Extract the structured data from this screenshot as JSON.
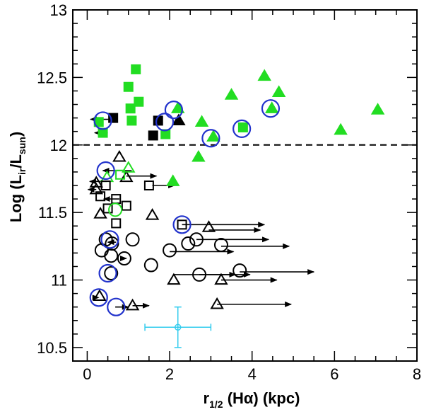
{
  "chart_data": {
    "type": "scatter",
    "title": "",
    "xlabel": {
      "main": "r",
      "sub": "1/2",
      "rest": " (Hα)  (kpc)"
    },
    "ylabel": {
      "pre": "Log (L",
      "sub1": "ir",
      "mid": "/L",
      "sub2": "sun",
      "post": ")"
    },
    "xlim": [
      -0.35,
      8.0
    ],
    "ylim": [
      10.4,
      13.0
    ],
    "x_ticks": [
      0,
      2,
      4,
      6,
      8
    ],
    "x_tick_labels": [
      "0",
      "2",
      "4",
      "6",
      "8"
    ],
    "y_ticks": [
      10.5,
      11,
      11.5,
      12,
      12.5,
      13
    ],
    "y_tick_labels": [
      "10.5",
      "11",
      "11.5",
      "12",
      "12.5",
      "13"
    ],
    "threshold_line": {
      "y": 12.0,
      "style": "dashed"
    },
    "colors": {
      "green": "#22dd22",
      "black": "#000000",
      "blue": "#2233cc",
      "cyan": "#33ccee"
    },
    "series": [
      {
        "name": "green-filled-squares",
        "marker": "square",
        "fill": "green",
        "points": [
          [
            1.18,
            12.56
          ],
          [
            1.0,
            12.43
          ],
          [
            1.25,
            12.32
          ],
          [
            1.05,
            12.27
          ],
          [
            1.08,
            12.18
          ],
          [
            0.28,
            12.17
          ],
          [
            0.38,
            12.09
          ],
          [
            1.9,
            12.08
          ],
          [
            3.78,
            12.13
          ]
        ]
      },
      {
        "name": "black-filled-squares",
        "marker": "square",
        "fill": "black",
        "points": [
          [
            0.63,
            12.2
          ],
          [
            1.72,
            12.18
          ],
          [
            1.6,
            12.07
          ]
        ]
      },
      {
        "name": "green-filled-triangles",
        "marker": "triangle",
        "fill": "green",
        "points": [
          [
            4.3,
            12.51
          ],
          [
            4.65,
            12.39
          ],
          [
            3.5,
            12.37
          ],
          [
            2.2,
            12.27
          ],
          [
            4.48,
            12.27
          ],
          [
            2.78,
            12.17
          ],
          [
            7.05,
            12.26
          ],
          [
            3.06,
            12.06
          ],
          [
            6.15,
            12.11
          ],
          [
            2.7,
            11.91
          ],
          [
            2.08,
            11.73
          ]
        ]
      },
      {
        "name": "black-filled-triangles",
        "marker": "triangle",
        "fill": "black",
        "points": [
          [
            2.22,
            12.18
          ]
        ]
      },
      {
        "name": "open-triangles",
        "marker": "triangle",
        "fill": "none",
        "points": [
          [
            0.78,
            11.91
          ],
          [
            0.95,
            11.76
          ],
          [
            0.22,
            11.72
          ],
          [
            0.22,
            11.67
          ],
          [
            0.32,
            11.49
          ],
          [
            1.58,
            11.48
          ],
          [
            2.95,
            11.39
          ],
          [
            2.1,
            11.0
          ],
          [
            3.25,
            11.0
          ],
          [
            0.3,
            10.88
          ],
          [
            1.1,
            10.81
          ],
          [
            3.15,
            10.82
          ]
        ]
      },
      {
        "name": "open-green-triangles",
        "marker": "triangle",
        "fill": "none-green",
        "points": [
          [
            1.0,
            11.83
          ],
          [
            0.48,
            11.76
          ]
        ]
      },
      {
        "name": "open-squares",
        "marker": "square",
        "fill": "none",
        "points": [
          [
            0.32,
            11.62
          ],
          [
            0.45,
            11.7
          ],
          [
            0.7,
            11.6
          ],
          [
            0.5,
            11.53
          ],
          [
            0.95,
            11.55
          ],
          [
            0.7,
            11.42
          ],
          [
            1.5,
            11.7
          ],
          [
            2.3,
            11.41
          ]
        ]
      },
      {
        "name": "open-green-squares",
        "marker": "square",
        "fill": "none-green",
        "points": [
          [
            0.8,
            11.78
          ]
        ]
      },
      {
        "name": "open-circles",
        "marker": "circle",
        "fill": "none",
        "points": [
          [
            0.45,
            11.3
          ],
          [
            0.6,
            11.27
          ],
          [
            1.1,
            11.3
          ],
          [
            0.35,
            11.22
          ],
          [
            0.58,
            11.18
          ],
          [
            0.9,
            11.16
          ],
          [
            1.55,
            11.11
          ],
          [
            2.0,
            11.22
          ],
          [
            2.45,
            11.27
          ],
          [
            2.65,
            11.3
          ],
          [
            3.25,
            11.26
          ],
          [
            0.58,
            11.05
          ],
          [
            2.72,
            11.04
          ],
          [
            3.7,
            11.07
          ]
        ]
      },
      {
        "name": "open-green-circles",
        "marker": "circle",
        "fill": "none-green",
        "points": [
          [
            0.68,
            11.52
          ]
        ]
      }
    ],
    "blue_rings": [
      [
        0.38,
        12.18
      ],
      [
        1.88,
        12.17
      ],
      [
        2.1,
        12.26
      ],
      [
        3.0,
        12.05
      ],
      [
        3.75,
        12.12
      ],
      [
        4.45,
        12.27
      ],
      [
        0.45,
        11.81
      ],
      [
        2.3,
        11.41
      ],
      [
        0.55,
        11.3
      ],
      [
        0.5,
        11.05
      ],
      [
        0.28,
        10.87
      ],
      [
        0.7,
        10.8
      ]
    ],
    "arrows": [
      {
        "from": 0.68,
        "to": 0.08,
        "y": 12.19
      },
      {
        "from": 0.5,
        "to": 0.18,
        "y": 12.09
      },
      {
        "from": 1.08,
        "to": 0.38,
        "y": 11.81
      },
      {
        "from": 0.95,
        "to": 1.68,
        "y": 11.77
      },
      {
        "from": 0.48,
        "to": 0.06,
        "y": 11.73
      },
      {
        "from": 0.22,
        "to": 0.02,
        "y": 11.67
      },
      {
        "from": 1.58,
        "to": 2.12,
        "y": 11.7
      },
      {
        "from": 0.78,
        "to": 0.4,
        "y": 11.6
      },
      {
        "from": 2.3,
        "to": 4.3,
        "y": 11.41
      },
      {
        "from": 2.95,
        "to": 4.2,
        "y": 11.37
      },
      {
        "from": 2.65,
        "to": 4.4,
        "y": 11.3
      },
      {
        "from": 3.25,
        "to": 4.9,
        "y": 11.25
      },
      {
        "from": 0.7,
        "to": 0.5,
        "y": 11.28
      },
      {
        "from": 2.0,
        "to": 3.55,
        "y": 11.21
      },
      {
        "from": 0.9,
        "to": 0.95,
        "y": 11.16
      },
      {
        "from": 2.1,
        "to": 3.6,
        "y": 11.04
      },
      {
        "from": 3.25,
        "to": 4.6,
        "y": 11.0
      },
      {
        "from": 3.7,
        "to": 5.5,
        "y": 11.06
      },
      {
        "from": 2.72,
        "to": 3.95,
        "y": 11.04
      },
      {
        "from": 0.28,
        "to": 0.28,
        "y": 10.87
      },
      {
        "from": 1.1,
        "to": 1.5,
        "y": 10.81
      },
      {
        "from": 0.68,
        "to": 1.0,
        "y": 10.8
      },
      {
        "from": 3.15,
        "to": 4.95,
        "y": 10.82
      }
    ],
    "error_point": {
      "x": 2.2,
      "y": 10.65,
      "xerr": 0.8,
      "yerr": 0.15
    }
  }
}
